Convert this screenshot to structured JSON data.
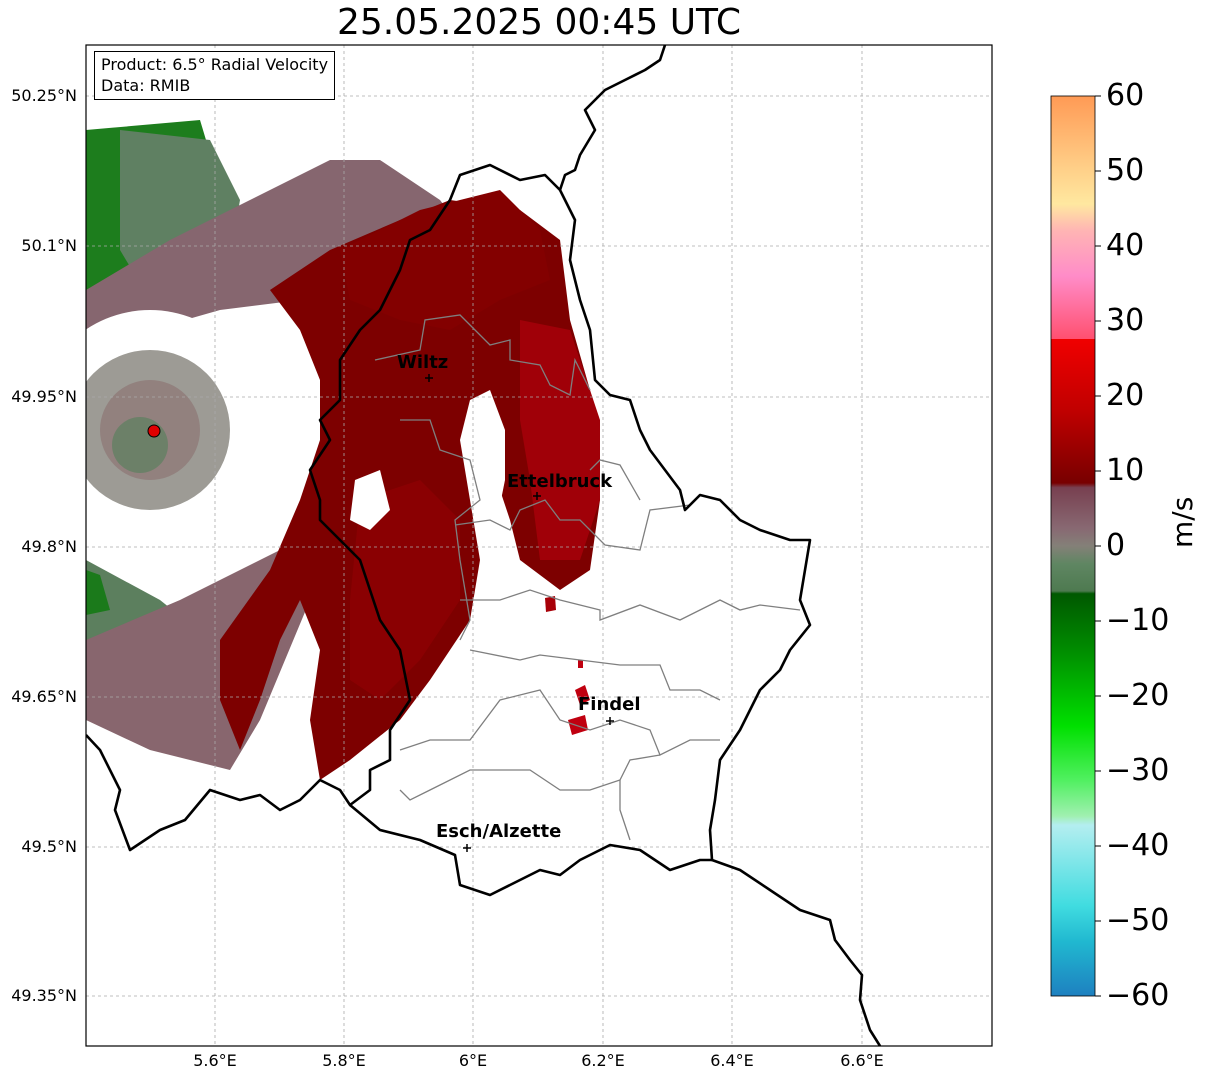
{
  "title": "25.05.2025 00:45 UTC",
  "info": {
    "product": "Product: 6.5° Radial Velocity",
    "source": "Data: RMIB"
  },
  "lat_ticks": [
    "50.25°N",
    "50.1°N",
    "49.95°N",
    "49.8°N",
    "49.65°N",
    "49.5°N",
    "49.35°N"
  ],
  "lon_ticks": [
    "5.6°E",
    "5.8°E",
    "6°E",
    "6.2°E",
    "6.4°E",
    "6.6°E"
  ],
  "cities": [
    {
      "name": "Wiltz",
      "lat": 49.97,
      "lon": 5.93
    },
    {
      "name": "Ettelbruck",
      "lat": 49.85,
      "lon": 6.1
    },
    {
      "name": "Findel",
      "lat": 49.63,
      "lon": 6.21
    },
    {
      "name": "Esch/Alzette",
      "lat": 49.5,
      "lon": 5.99
    }
  ],
  "colorbar": {
    "unit": "m/s",
    "ticks": [
      "60",
      "50",
      "40",
      "30",
      "20",
      "10",
      "0",
      "−10",
      "−20",
      "−30",
      "−40",
      "−50",
      "−60"
    ],
    "min": -60,
    "max": 60
  },
  "colors": {
    "strong_red": "#7d0000",
    "inbound_green": "#007700",
    "grey_green": "#5f7f5f",
    "mauve": "#866070",
    "radar_site": "#e00000"
  }
}
